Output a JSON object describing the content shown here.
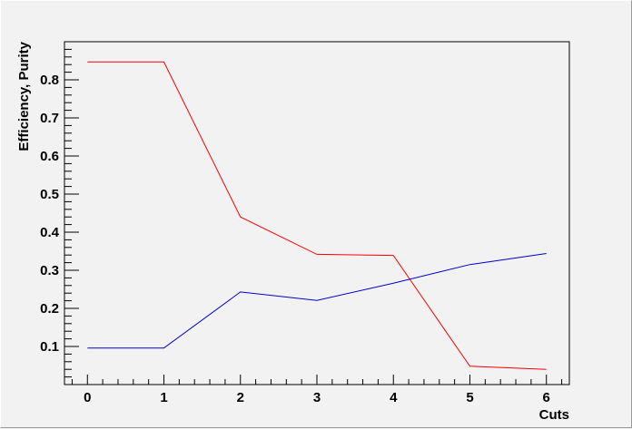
{
  "chart_data": {
    "type": "line",
    "title": "",
    "xlabel": "Cuts",
    "ylabel": "Efficiency, Purity",
    "x": [
      0,
      1,
      2,
      3,
      4,
      5,
      6
    ],
    "xlim": [
      -0.3,
      6.3
    ],
    "ylim": [
      0.0,
      0.9
    ],
    "xticks": [
      "0",
      "1",
      "2",
      "3",
      "4",
      "5",
      "6"
    ],
    "yticks": [
      "0.1",
      "0.2",
      "0.3",
      "0.4",
      "0.5",
      "0.6",
      "0.7",
      "0.8"
    ],
    "grid": false,
    "legend": "none",
    "series": [
      {
        "color": "#ff0000",
        "values": [
          0.847,
          0.847,
          0.44,
          0.342,
          0.339,
          0.048,
          0.04
        ]
      },
      {
        "color": "#0000cc",
        "values": [
          0.096,
          0.096,
          0.243,
          0.221,
          0.266,
          0.315,
          0.344
        ]
      }
    ]
  }
}
